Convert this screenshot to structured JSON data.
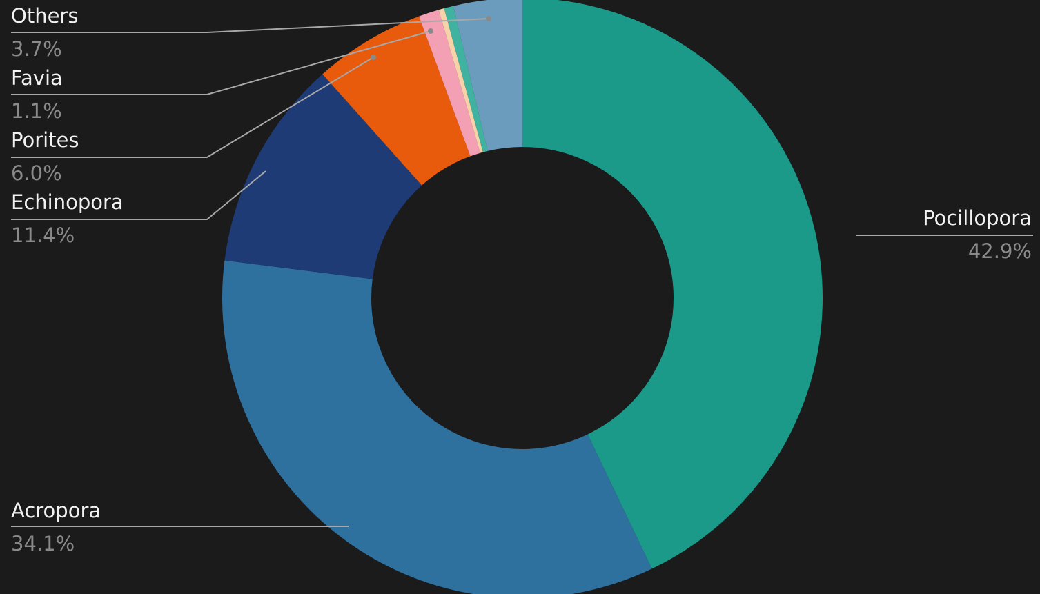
{
  "chart_data": {
    "type": "donut",
    "categories": [
      "Pocillopora",
      "Acropora",
      "Echinopora",
      "Porites",
      "Favia",
      null,
      null,
      "Others"
    ],
    "values": [
      42.9,
      34.1,
      11.4,
      6.0,
      1.1,
      0.3,
      0.5,
      3.7
    ],
    "value_labels": [
      "42.9%",
      "34.1%",
      "11.4%",
      "6.0%",
      "1.1%",
      null,
      null,
      "3.7%"
    ],
    "colors": [
      "#1b9a8a",
      "#2e709e",
      "#1f3b75",
      "#e85a0c",
      "#f4a0b4",
      "#f6d2a8",
      "#3fb3a0",
      "#6b9cbd"
    ]
  }
}
